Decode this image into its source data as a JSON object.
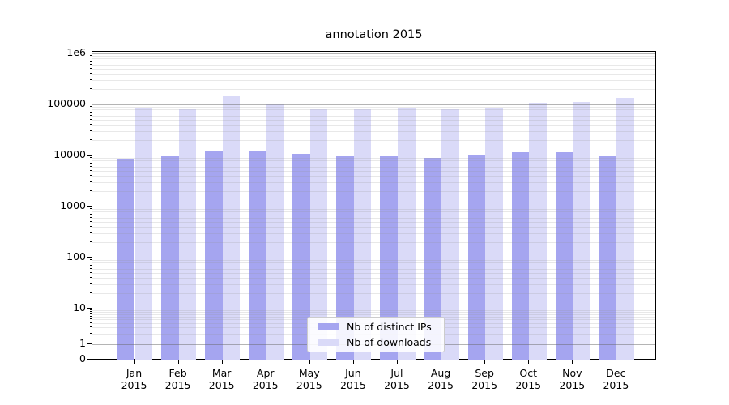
{
  "chart_data": {
    "type": "bar",
    "title": "annotation 2015",
    "categories": [
      "Jan 2015",
      "Feb 2015",
      "Mar 2015",
      "Apr 2015",
      "May 2015",
      "Jun 2015",
      "Jul 2015",
      "Aug 2015",
      "Sep 2015",
      "Oct 2015",
      "Nov 2015",
      "Dec 2015"
    ],
    "x_tick_months": [
      "Jan",
      "Feb",
      "Mar",
      "Apr",
      "May",
      "Jun",
      "Jul",
      "Aug",
      "Sep",
      "Oct",
      "Nov",
      "Dec"
    ],
    "x_tick_year": "2015",
    "series": [
      {
        "name": "Nb of distinct IPs",
        "color": "#a5a5f0",
        "values": [
          8500,
          9500,
          12300,
          12600,
          10800,
          9900,
          9700,
          8800,
          10500,
          11700,
          11700,
          10000
        ]
      },
      {
        "name": "Nb of downloads",
        "color": "#dadaf8",
        "values": [
          87000,
          83000,
          152000,
          101000,
          84000,
          79000,
          85000,
          81000,
          87000,
          106000,
          112000,
          133000
        ]
      }
    ],
    "yscale": "symlog",
    "ylim": [
      0,
      1150000
    ],
    "y_ticks": [
      {
        "label": "1e6",
        "value": 1000000
      },
      {
        "label": "100000",
        "value": 100000
      },
      {
        "label": "10000",
        "value": 10000
      },
      {
        "label": "1000",
        "value": 1000
      },
      {
        "label": "100",
        "value": 100
      },
      {
        "label": "10",
        "value": 10
      },
      {
        "label": "1",
        "value": 1
      },
      {
        "label": "0",
        "value": 0
      }
    ],
    "grid": true,
    "legend_position": "lower center"
  },
  "colors": {
    "bar_distinct_ips": "#a5a5f0",
    "bar_downloads": "#dadaf8",
    "axis": "#000000",
    "grid_major": "#6a6a6a",
    "grid_minor": "#bdbdbd",
    "legend_border": "#cccccc",
    "background": "#ffffff"
  }
}
